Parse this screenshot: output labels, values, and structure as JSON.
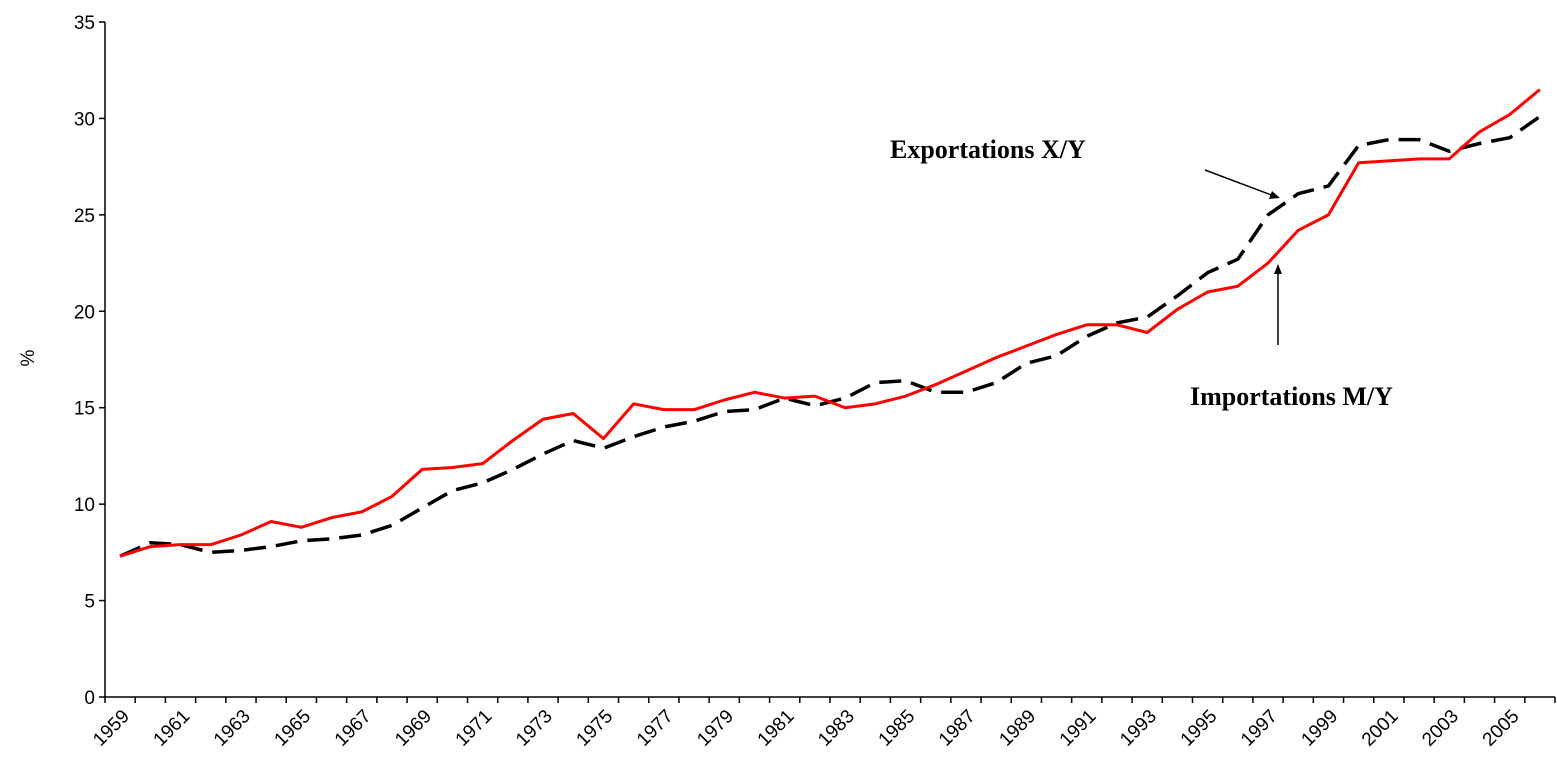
{
  "chart_data": {
    "type": "line",
    "ylabel": "%",
    "categories": [
      "1959",
      null,
      "1961",
      null,
      "1963",
      null,
      "1965",
      null,
      "1967",
      null,
      "1969",
      null,
      "1971",
      null,
      "1973",
      null,
      "1975",
      null,
      "1977",
      null,
      "1979",
      null,
      "1981",
      null,
      "1983",
      null,
      "1985",
      null,
      "1987",
      null,
      "1989",
      null,
      "1991",
      null,
      "1993",
      null,
      "1995",
      null,
      "1997",
      null,
      "1999",
      null,
      "2001",
      null,
      "2003",
      null,
      "2005",
      null
    ],
    "series": [
      {
        "name": "Exportations X/Y",
        "color": "#000000",
        "dash": true,
        "values": [
          7.3,
          8.0,
          7.9,
          7.5,
          7.6,
          7.8,
          8.1,
          8.2,
          8.4,
          8.9,
          9.8,
          10.7,
          11.1,
          11.8,
          12.6,
          13.3,
          12.9,
          13.5,
          14.0,
          14.3,
          14.8,
          14.9,
          15.5,
          15.1,
          15.5,
          16.3,
          16.4,
          15.8,
          15.8,
          16.3,
          17.3,
          17.7,
          18.7,
          19.4,
          19.7,
          20.8,
          22.0,
          22.7,
          25.0,
          26.1,
          26.5,
          28.6,
          28.9,
          28.9,
          28.3,
          28.7,
          29.0,
          30.1
        ]
      },
      {
        "name": "Importations M/Y",
        "color": "#ff0000",
        "dash": false,
        "values": [
          7.3,
          7.8,
          7.9,
          7.9,
          8.4,
          9.1,
          8.8,
          9.3,
          9.6,
          10.4,
          11.8,
          11.9,
          12.1,
          13.3,
          14.4,
          14.7,
          13.4,
          15.2,
          14.9,
          14.9,
          15.4,
          15.8,
          15.5,
          15.6,
          15.0,
          15.2,
          15.6,
          16.2,
          16.9,
          17.6,
          18.2,
          18.8,
          19.3,
          19.3,
          18.9,
          20.1,
          21.0,
          21.3,
          22.5,
          24.2,
          25.0,
          27.7,
          27.8,
          27.9,
          27.9,
          29.3,
          30.2,
          31.5
        ]
      }
    ],
    "ylim": [
      0,
      35
    ],
    "yticks": [
      0,
      5,
      10,
      15,
      20,
      25,
      30,
      35
    ],
    "grid": false
  }
}
